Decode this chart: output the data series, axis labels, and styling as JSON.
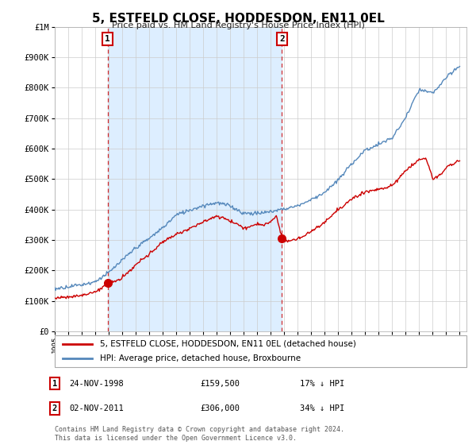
{
  "title": "5, ESTFELD CLOSE, HODDESDON, EN11 0EL",
  "subtitle": "Price paid vs. HM Land Registry's House Price Index (HPI)",
  "sale1_date": "24-NOV-1998",
  "sale1_price": 159500,
  "sale2_date": "02-NOV-2011",
  "sale2_price": 306000,
  "sale1_note": "17% ↓ HPI",
  "sale2_note": "34% ↓ HPI",
  "legend_red": "5, ESTFELD CLOSE, HODDESDON, EN11 0EL (detached house)",
  "legend_blue": "HPI: Average price, detached house, Broxbourne",
  "footnote": "Contains HM Land Registry data © Crown copyright and database right 2024.\nThis data is licensed under the Open Government Licence v3.0.",
  "red_color": "#cc0000",
  "blue_color": "#5588bb",
  "shade_color": "#ddeeff",
  "background_color": "#ffffff",
  "grid_color": "#cccccc",
  "ylim_max": 1000000,
  "xlim_start": 1995.0,
  "xlim_end": 2025.5
}
